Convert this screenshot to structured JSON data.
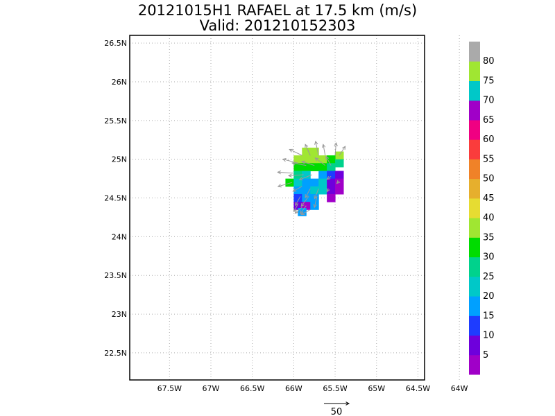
{
  "chart_data": {
    "type": "heatmap",
    "title": "20121015H1 RAFAEL at 17.5 km (m/s)",
    "subtitle": "Valid: 201210152303",
    "xlabel": "",
    "ylabel": "",
    "x_ticks": [
      -67.5,
      -67,
      -66.5,
      -66,
      -65.5,
      -65,
      -64.5,
      -64
    ],
    "x_tick_labels": [
      "67.5W",
      "67W",
      "66.5W",
      "66W",
      "65.5W",
      "65W",
      "64.5W",
      "64W"
    ],
    "y_ticks": [
      22.5,
      23,
      23.5,
      24,
      24.5,
      25,
      25.5,
      26,
      26.5
    ],
    "y_tick_labels": [
      "22.5N",
      "23N",
      "23.5N",
      "24N",
      "24.5N",
      "25N",
      "25.5N",
      "26N",
      "26.5N"
    ],
    "xlim": [
      -67.98,
      -64.42
    ],
    "ylim": [
      22.15,
      26.6
    ],
    "grid": true,
    "colorbar": {
      "levels": [
        5,
        10,
        15,
        20,
        25,
        30,
        35,
        40,
        45,
        50,
        55,
        60,
        65,
        70,
        75,
        80
      ],
      "labels": [
        "5",
        "10",
        "15",
        "20",
        "25",
        "30",
        "35",
        "40",
        "45",
        "50",
        "55",
        "60",
        "65",
        "70",
        "75",
        "80"
      ],
      "colors": [
        "#a000c8",
        "#6e00dc",
        "#1e3cff",
        "#00a0ff",
        "#00c8c8",
        "#00d28c",
        "#00dc00",
        "#a0e632",
        "#e6dc32",
        "#e6af2d",
        "#f08228",
        "#fa3c3c",
        "#f00082",
        "#a000c8",
        "#00c8c8",
        "#a0e632",
        "#aaaaaa"
      ]
    },
    "cells": [
      {
        "lon": -65.85,
        "lat": 25.1,
        "v": 38
      },
      {
        "lon": -65.75,
        "lat": 25.1,
        "v": 38
      },
      {
        "lon": -65.45,
        "lat": 25.05,
        "v": 38
      },
      {
        "lon": -65.95,
        "lat": 25.0,
        "v": 36
      },
      {
        "lon": -65.85,
        "lat": 25.0,
        "v": 38
      },
      {
        "lon": -65.75,
        "lat": 25.0,
        "v": 36
      },
      {
        "lon": -65.65,
        "lat": 25.0,
        "v": 36
      },
      {
        "lon": -65.55,
        "lat": 25.0,
        "v": 33
      },
      {
        "lon": -65.45,
        "lat": 24.95,
        "v": 26
      },
      {
        "lon": -65.95,
        "lat": 24.9,
        "v": 33
      },
      {
        "lon": -65.85,
        "lat": 24.9,
        "v": 32
      },
      {
        "lon": -65.75,
        "lat": 24.9,
        "v": 33
      },
      {
        "lon": -65.65,
        "lat": 24.9,
        "v": 33
      },
      {
        "lon": -65.55,
        "lat": 24.9,
        "v": 27
      },
      {
        "lon": -65.95,
        "lat": 24.8,
        "v": 28
      },
      {
        "lon": -65.85,
        "lat": 24.8,
        "v": 20
      },
      {
        "lon": -65.65,
        "lat": 24.8,
        "v": 18
      },
      {
        "lon": -65.55,
        "lat": 24.8,
        "v": 12
      },
      {
        "lon": -65.45,
        "lat": 24.8,
        "v": 8
      },
      {
        "lon": -66.05,
        "lat": 24.7,
        "v": 31
      },
      {
        "lon": -65.95,
        "lat": 24.7,
        "v": 22
      },
      {
        "lon": -65.85,
        "lat": 24.7,
        "v": 19
      },
      {
        "lon": -65.75,
        "lat": 24.7,
        "v": 18
      },
      {
        "lon": -65.65,
        "lat": 24.7,
        "v": 21
      },
      {
        "lon": -65.55,
        "lat": 24.7,
        "v": 6
      },
      {
        "lon": -65.45,
        "lat": 24.7,
        "v": 4
      },
      {
        "lon": -65.95,
        "lat": 24.6,
        "v": 19
      },
      {
        "lon": -65.85,
        "lat": 24.6,
        "v": 18
      },
      {
        "lon": -65.75,
        "lat": 24.6,
        "v": 24
      },
      {
        "lon": -65.65,
        "lat": 24.6,
        "v": 23
      },
      {
        "lon": -65.55,
        "lat": 24.6,
        "v": 5
      },
      {
        "lon": -65.45,
        "lat": 24.6,
        "v": 4
      },
      {
        "lon": -65.95,
        "lat": 24.5,
        "v": 11
      },
      {
        "lon": -65.85,
        "lat": 24.5,
        "v": 18
      },
      {
        "lon": -65.75,
        "lat": 24.5,
        "v": 19
      },
      {
        "lon": -65.55,
        "lat": 24.5,
        "v": 4
      },
      {
        "lon": -65.95,
        "lat": 24.4,
        "v": 6
      },
      {
        "lon": -65.85,
        "lat": 24.4,
        "v": 4
      },
      {
        "lon": -65.75,
        "lat": 24.4,
        "v": 18
      },
      {
        "lon": -65.9,
        "lat": 24.32,
        "v": 19
      }
    ],
    "vectors": [
      {
        "lon": -65.9,
        "lat": 25.05,
        "u": -25,
        "v": 12
      },
      {
        "lon": -65.8,
        "lat": 25.05,
        "u": -10,
        "v": 22
      },
      {
        "lon": -65.7,
        "lat": 25.05,
        "u": -6,
        "v": 28
      },
      {
        "lon": -65.62,
        "lat": 25.05,
        "u": -4,
        "v": 22
      },
      {
        "lon": -65.5,
        "lat": 25.05,
        "u": 2,
        "v": 25
      },
      {
        "lon": -65.45,
        "lat": 25.05,
        "u": 12,
        "v": 18
      },
      {
        "lon": -65.95,
        "lat": 24.95,
        "u": -30,
        "v": 8
      },
      {
        "lon": -65.85,
        "lat": 24.92,
        "u": -28,
        "v": 5
      },
      {
        "lon": -65.75,
        "lat": 24.92,
        "u": -25,
        "v": 8
      },
      {
        "lon": -65.62,
        "lat": 24.92,
        "u": -20,
        "v": 15
      },
      {
        "lon": -65.55,
        "lat": 24.92,
        "u": -10,
        "v": 18
      },
      {
        "lon": -66.0,
        "lat": 24.82,
        "u": -32,
        "v": 2
      },
      {
        "lon": -65.88,
        "lat": 24.8,
        "u": -30,
        "v": -2
      },
      {
        "lon": -65.78,
        "lat": 24.8,
        "u": -25,
        "v": -10
      },
      {
        "lon": -65.55,
        "lat": 24.78,
        "u": -8,
        "v": -6
      },
      {
        "lon": -65.45,
        "lat": 24.72,
        "u": -5,
        "v": -5
      },
      {
        "lon": -66.02,
        "lat": 24.7,
        "u": -28,
        "v": -8
      },
      {
        "lon": -65.9,
        "lat": 24.65,
        "u": -18,
        "v": -10
      },
      {
        "lon": -65.8,
        "lat": 24.62,
        "u": -10,
        "v": -18
      },
      {
        "lon": -65.7,
        "lat": 24.62,
        "u": -8,
        "v": -20
      },
      {
        "lon": -65.58,
        "lat": 24.62,
        "u": -3,
        "v": -6
      },
      {
        "lon": -65.92,
        "lat": 24.52,
        "u": -10,
        "v": -18
      },
      {
        "lon": -65.82,
        "lat": 24.52,
        "u": -15,
        "v": -20
      },
      {
        "lon": -65.72,
        "lat": 24.52,
        "u": -5,
        "v": -22
      },
      {
        "lon": -65.95,
        "lat": 24.42,
        "u": -8,
        "v": -15
      },
      {
        "lon": -65.85,
        "lat": 24.4,
        "u": -12,
        "v": -16
      },
      {
        "lon": -65.8,
        "lat": 24.35,
        "u": -18,
        "v": -10
      },
      {
        "lon": -65.9,
        "lat": 24.38,
        "u": -14,
        "v": -12
      }
    ],
    "reference_vector": {
      "magnitude": 50,
      "label": "50"
    }
  },
  "colors": {
    "frame": "#000000",
    "grid": "#aaaaaa",
    "vector": "#999999"
  }
}
